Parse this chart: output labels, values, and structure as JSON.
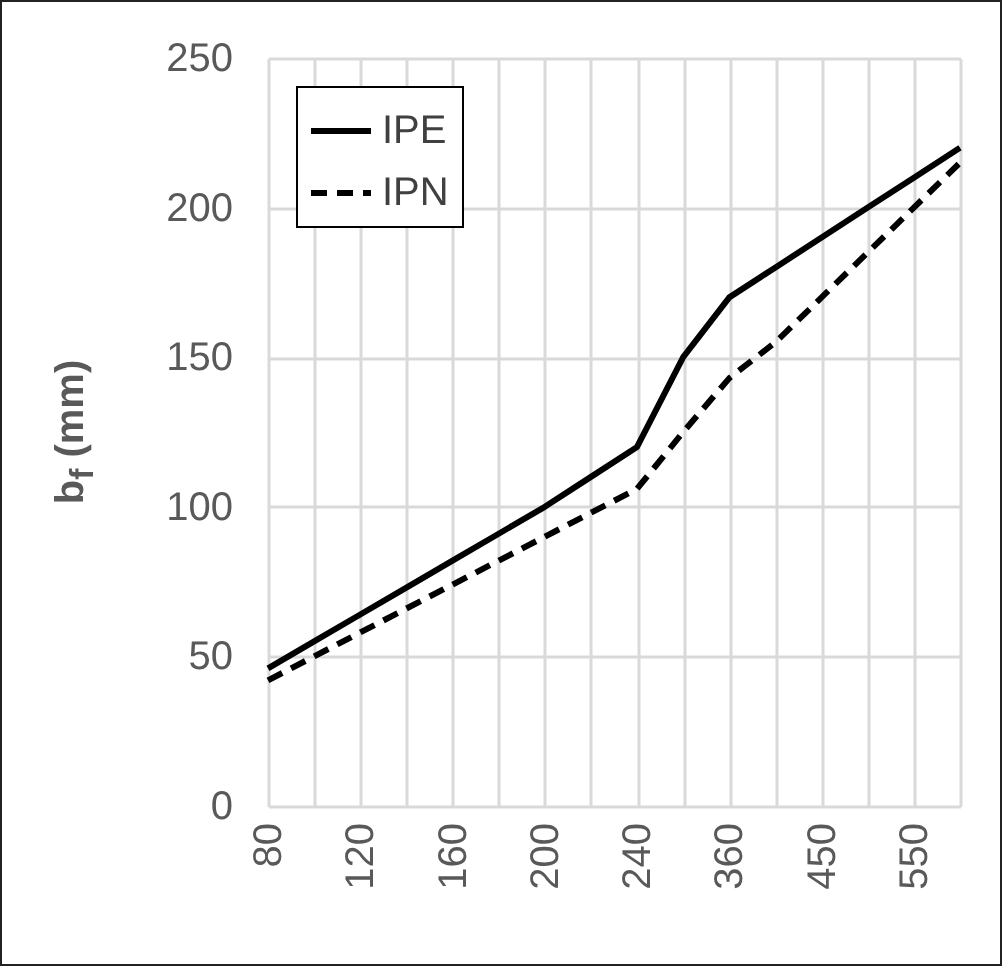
{
  "chart_data": {
    "type": "line",
    "ylabel": "b$_{f}$ (mm)",
    "categories": [
      "80",
      null,
      "120",
      null,
      "160",
      null,
      "200",
      null,
      "240",
      null,
      "360",
      null,
      "450",
      null,
      "550",
      null
    ],
    "series": [
      {
        "name": "IPE",
        "color": "#000000",
        "line_style": "solid",
        "values": [
          46,
          55,
          64,
          73,
          82,
          91,
          100,
          110,
          120,
          150,
          170,
          180,
          190,
          200,
          210,
          220
        ]
      },
      {
        "name": "IPN",
        "color": "#000000",
        "line_style": "dashed",
        "values": [
          42,
          50,
          58,
          66,
          74,
          82,
          90,
          98,
          106,
          125,
          143,
          155,
          170,
          185,
          200,
          215
        ]
      }
    ],
    "ylim": [
      0,
      250
    ],
    "yticks": [
      0,
      50,
      100,
      150,
      200,
      250
    ],
    "grid": true,
    "legend": "top left",
    "marker": "none"
  }
}
